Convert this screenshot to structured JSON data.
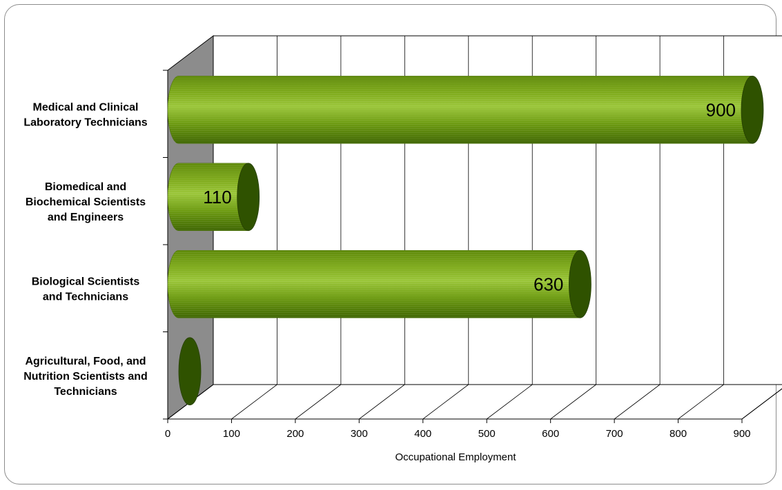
{
  "chart_data": {
    "type": "bar",
    "orientation": "horizontal",
    "style": "3d-cylinder",
    "categories": [
      "Medical and Clinical Laboratory Technicians",
      "Biomedical and Biochemical Scientists and Engineers",
      "Biological Scientists and Technicians",
      "Agricultural, Food, and Nutrition Scientists and Technicians"
    ],
    "category_label_lines": [
      [
        "Medical and Clinical",
        "Laboratory Technicians"
      ],
      [
        "Biomedical and",
        "Biochemical Scientists",
        "and Engineers"
      ],
      [
        "Biological Scientists",
        "and Technicians"
      ],
      [
        "Agricultural, Food, and",
        "Nutrition Scientists and",
        "Technicians"
      ]
    ],
    "values": [
      900,
      110,
      630,
      0
    ],
    "data_labels": [
      "900",
      "110",
      "630",
      ""
    ],
    "xlabel": "Occupational Employment",
    "ylabel": "",
    "xlim": [
      0,
      900
    ],
    "xticks": [
      "0",
      "100",
      "200",
      "300",
      "400",
      "500",
      "600",
      "700",
      "800",
      "900"
    ],
    "grid": true,
    "legend": "none",
    "colors": {
      "bar": "#6b9a0e",
      "bar_highlight": "#9cc93a",
      "bar_shadow": "#4a7005",
      "bar_end": "#2f5200",
      "side_wall": "#8c8c8c",
      "grid": "#000000"
    }
  }
}
